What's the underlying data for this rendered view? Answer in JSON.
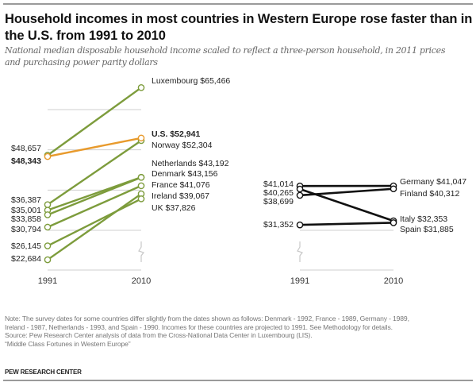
{
  "header": {
    "title": "Household incomes in most countries in Western Europe rose faster than in the U.S. from 1991 to 2010",
    "subtitle": "National median disposable household income scaled to reflect a three-person household, in 2011 prices and purchasing power parity dollars"
  },
  "colors": {
    "green": "#7d9c3c",
    "orange": "#e89a2c",
    "black": "#111111",
    "gridline": "#cfcfcf"
  },
  "chart_data": [
    {
      "type": "line",
      "subtype": "slope",
      "panel": "left",
      "x": [
        "1991",
        "2010"
      ],
      "ylim": [
        20000,
        66000
      ],
      "grid": true,
      "gridlines": [
        30000,
        40000,
        50000,
        60000
      ],
      "axis_break": true,
      "series": [
        {
          "name": "Luxembourg",
          "values": [
            48657,
            65466
          ],
          "color": "green",
          "label_2010": "Luxembourg $65,466",
          "bold": false
        },
        {
          "name": "U.S.",
          "values": [
            48343,
            52941
          ],
          "color": "orange",
          "label_2010": "U.S. $52,941",
          "bold": true
        },
        {
          "name": "Norway",
          "values": [
            36387,
            52304
          ],
          "color": "green",
          "label_2010": "Norway $52,304",
          "bold": false
        },
        {
          "name": "Netherlands",
          "values": [
            35001,
            43192
          ],
          "color": "green",
          "label_2010": "Netherlands $43,192",
          "bold": false
        },
        {
          "name": "Denmark",
          "values": [
            33858,
            43156
          ],
          "color": "green",
          "label_2010": "Denmark $43,156",
          "bold": false
        },
        {
          "name": "France",
          "values": [
            30794,
            41076
          ],
          "color": "green",
          "label_2010": "France $41,076",
          "bold": false
        },
        {
          "name": "Ireland",
          "values": [
            22684,
            39067
          ],
          "color": "green",
          "label_2010": "Ireland $39,067",
          "bold": false
        },
        {
          "name": "UK",
          "values": [
            26145,
            37826
          ],
          "color": "green",
          "label_2010": "UK $37,826",
          "bold": false
        }
      ],
      "labels_1991": [
        {
          "text": "$48,657",
          "bold": false
        },
        {
          "text": "$48,343",
          "bold": true
        },
        {
          "text": "$36,387",
          "bold": false
        },
        {
          "text": "$35,001",
          "bold": false
        },
        {
          "text": "$33,858",
          "bold": false
        },
        {
          "text": "$30,794",
          "bold": false
        },
        {
          "text": "$26,145",
          "bold": false
        },
        {
          "text": "$22,684",
          "bold": false
        }
      ]
    },
    {
      "type": "line",
      "subtype": "slope",
      "panel": "right",
      "x": [
        "1991",
        "2010"
      ],
      "ylim": [
        20000,
        66000
      ],
      "grid": true,
      "gridlines": [
        30000
      ],
      "axis_break": true,
      "series": [
        {
          "name": "Germany",
          "values": [
            41014,
            41047
          ],
          "color": "black",
          "label_2010": "Germany $41,047",
          "bold": false
        },
        {
          "name": "Italy",
          "values": [
            40265,
            32353
          ],
          "color": "black",
          "label_2010": "Italy $32,353",
          "bold": false
        },
        {
          "name": "Finland",
          "values": [
            38699,
            40312
          ],
          "color": "black",
          "label_2010": "Finland $40,312",
          "bold": false
        },
        {
          "name": "Spain",
          "values": [
            31352,
            31885
          ],
          "color": "black",
          "label_2010": "Spain $31,885",
          "bold": false
        }
      ],
      "labels_1991": [
        {
          "text": "$41,014",
          "bold": false
        },
        {
          "text": "$40,265",
          "bold": false
        },
        {
          "text": "$38,699",
          "bold": false
        },
        {
          "text": "$31,352",
          "bold": false
        }
      ]
    }
  ],
  "footer": {
    "note_lines": [
      "Note: The survey dates for some countries differ slightly from the dates shown as follows: Denmark - 1992, France - 1989, Germany - 1989,",
      "Ireland - 1987, Netherlands - 1993, and Spain - 1990. Incomes for these countries are projected to 1991. See Methodology for details.",
      "Source: Pew Research Center analysis of data from the Cross-National Data Center in Luxembourg (LIS).",
      "“Middle Class Fortunes in Western Europe”"
    ],
    "brand": "PEW RESEARCH CENTER"
  }
}
